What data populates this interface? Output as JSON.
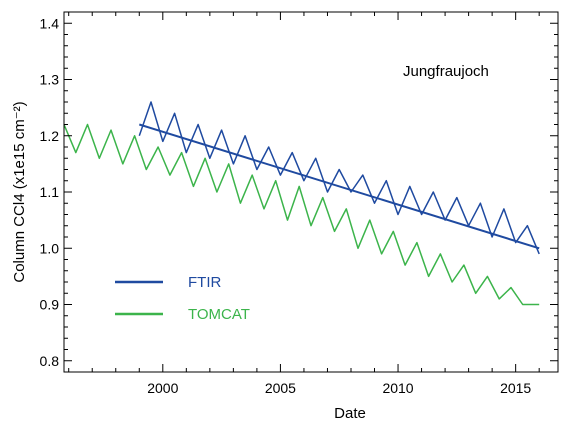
{
  "chart_data": {
    "type": "line",
    "title": "",
    "annotation": "Jungfraujoch",
    "xlabel": "Date",
    "ylabel": "Column CCl4 (x1e15 cm⁻²)",
    "xlim": [
      1995.8,
      2016.8
    ],
    "ylim": [
      0.78,
      1.42
    ],
    "x_ticks": [
      2000,
      2005,
      2010,
      2015
    ],
    "y_ticks": [
      0.8,
      0.9,
      1.0,
      1.1,
      1.2,
      1.3,
      1.4
    ],
    "y_tick_labels": [
      "0.8",
      "0.9",
      "1.0",
      "1.1",
      "1.2",
      "1.3",
      "1.4"
    ],
    "legend_position": "lower-left",
    "series": [
      {
        "name": "FTIR",
        "color": "#1f4aa0",
        "x": [
          1999.0,
          1999.5,
          2000.0,
          2000.5,
          2001.0,
          2001.5,
          2002.0,
          2002.5,
          2003.0,
          2003.5,
          2004.0,
          2004.5,
          2005.0,
          2005.5,
          2006.0,
          2006.5,
          2007.0,
          2007.5,
          2008.0,
          2008.5,
          2009.0,
          2009.5,
          2010.0,
          2010.5,
          2011.0,
          2011.5,
          2012.0,
          2012.5,
          2013.0,
          2013.5,
          2014.0,
          2014.5,
          2015.0,
          2015.5,
          2016.0
        ],
        "values": [
          1.2,
          1.26,
          1.19,
          1.24,
          1.17,
          1.22,
          1.16,
          1.21,
          1.15,
          1.2,
          1.14,
          1.18,
          1.13,
          1.17,
          1.12,
          1.16,
          1.1,
          1.14,
          1.1,
          1.13,
          1.08,
          1.12,
          1.06,
          1.11,
          1.06,
          1.1,
          1.05,
          1.09,
          1.04,
          1.08,
          1.02,
          1.07,
          1.01,
          1.04,
          0.99
        ]
      },
      {
        "name": "TOMCAT",
        "color": "#3cb44b",
        "x": [
          1995.8,
          1996.3,
          1996.8,
          1997.3,
          1997.8,
          1998.3,
          1998.8,
          1999.3,
          1999.8,
          2000.3,
          2000.8,
          2001.3,
          2001.8,
          2002.3,
          2002.8,
          2003.3,
          2003.8,
          2004.3,
          2004.8,
          2005.3,
          2005.8,
          2006.3,
          2006.8,
          2007.3,
          2007.8,
          2008.3,
          2008.8,
          2009.3,
          2009.8,
          2010.3,
          2010.8,
          2011.3,
          2011.8,
          2012.3,
          2012.8,
          2013.3,
          2013.8,
          2014.3,
          2014.8,
          2015.3,
          2016.0
        ],
        "values": [
          1.22,
          1.17,
          1.22,
          1.16,
          1.21,
          1.15,
          1.2,
          1.14,
          1.18,
          1.13,
          1.17,
          1.11,
          1.16,
          1.1,
          1.15,
          1.08,
          1.13,
          1.07,
          1.12,
          1.05,
          1.11,
          1.04,
          1.09,
          1.03,
          1.07,
          1.0,
          1.05,
          0.99,
          1.03,
          0.97,
          1.01,
          0.95,
          0.99,
          0.94,
          0.97,
          0.92,
          0.95,
          0.91,
          0.93,
          0.9,
          0.9
        ]
      },
      {
        "name": "",
        "color": "#1f4aa0",
        "x": [
          1999.0,
          2016.0
        ],
        "values": [
          1.22,
          1.0
        ]
      }
    ]
  }
}
